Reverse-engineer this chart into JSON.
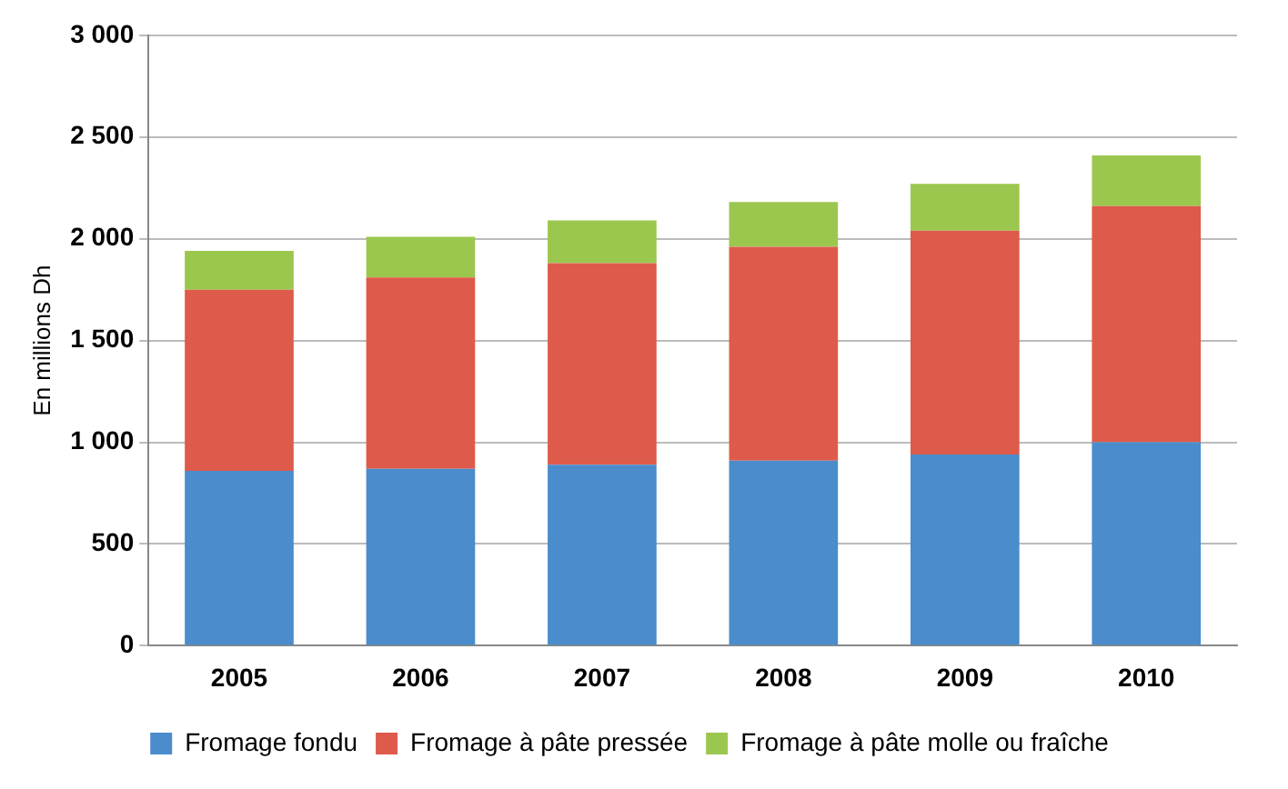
{
  "chart_data": {
    "type": "bar",
    "stacked": true,
    "ylabel": "En millions Dh",
    "categories": [
      "2005",
      "2006",
      "2007",
      "2008",
      "2009",
      "2010"
    ],
    "series": [
      {
        "name": "Fromage fondu",
        "color": "#4a8ccc",
        "values": [
          860,
          870,
          890,
          910,
          940,
          1000
        ]
      },
      {
        "name": "Fromage à pâte pressée",
        "color": "#de5a4a",
        "values": [
          890,
          940,
          990,
          1050,
          1100,
          1160
        ]
      },
      {
        "name": "Fromage à pâte molle ou fraîche",
        "color": "#9cc74e",
        "values": [
          190,
          200,
          210,
          220,
          230,
          250
        ]
      }
    ],
    "ylim": [
      0,
      3000
    ],
    "yticks": [
      {
        "value": 0,
        "label": "0"
      },
      {
        "value": 500,
        "label": "500"
      },
      {
        "value": 1000,
        "label": "1 000"
      },
      {
        "value": 1500,
        "label": "1 500"
      },
      {
        "value": 2000,
        "label": "2 000"
      },
      {
        "value": 2500,
        "label": "2 500"
      },
      {
        "value": 3000,
        "label": "3 000"
      }
    ],
    "grid": "y",
    "legend": "bottom"
  }
}
